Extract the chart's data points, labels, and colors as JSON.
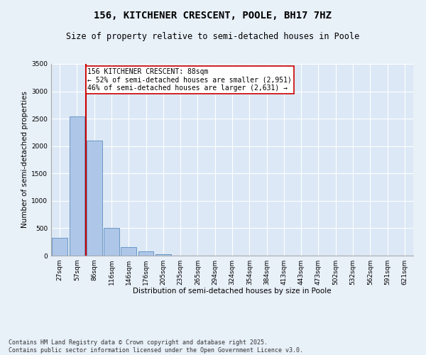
{
  "title1": "156, KITCHENER CRESCENT, POOLE, BH17 7HZ",
  "title2": "Size of property relative to semi-detached houses in Poole",
  "xlabel": "Distribution of semi-detached houses by size in Poole",
  "ylabel": "Number of semi-detached properties",
  "categories": [
    "27sqm",
    "57sqm",
    "86sqm",
    "116sqm",
    "146sqm",
    "176sqm",
    "205sqm",
    "235sqm",
    "265sqm",
    "294sqm",
    "324sqm",
    "354sqm",
    "384sqm",
    "413sqm",
    "443sqm",
    "473sqm",
    "502sqm",
    "532sqm",
    "562sqm",
    "591sqm",
    "621sqm"
  ],
  "values": [
    320,
    2540,
    2100,
    500,
    150,
    80,
    30,
    0,
    0,
    0,
    0,
    0,
    0,
    0,
    0,
    0,
    0,
    0,
    0,
    0,
    0
  ],
  "bar_color": "#aec6e8",
  "bar_edge_color": "#5a8fc0",
  "vline_color": "#cc0000",
  "annotation_text": "156 KITCHENER CRESCENT: 88sqm\n← 52% of semi-detached houses are smaller (2,951)\n46% of semi-detached houses are larger (2,631) →",
  "annotation_box_color": "#ffffff",
  "annotation_box_edge": "#cc0000",
  "background_color": "#e8f0f8",
  "plot_bg_color": "#dce8f5",
  "ylim": [
    0,
    3500
  ],
  "yticks": [
    0,
    500,
    1000,
    1500,
    2000,
    2500,
    3000,
    3500
  ],
  "footnote": "Contains HM Land Registry data © Crown copyright and database right 2025.\nContains public sector information licensed under the Open Government Licence v3.0.",
  "title_fontsize": 10,
  "subtitle_fontsize": 8.5,
  "axis_label_fontsize": 7.5,
  "tick_fontsize": 6.5,
  "annotation_fontsize": 7,
  "footnote_fontsize": 6
}
